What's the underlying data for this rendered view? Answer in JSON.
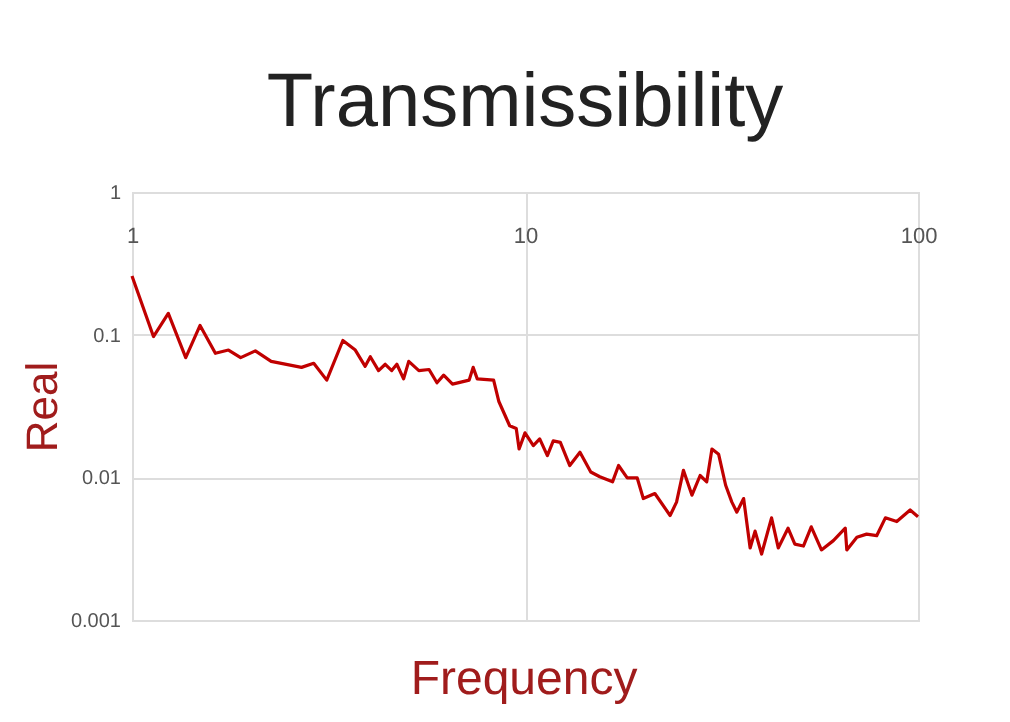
{
  "chart_data": {
    "type": "line",
    "title": "Transmissibility",
    "xlabel": "Frequency",
    "ylabel": "Real",
    "log": "xy",
    "grid": true,
    "xlim": [
      1,
      100
    ],
    "xticks": [
      1,
      10,
      100
    ],
    "ylim": [
      0.001,
      1
    ],
    "yticks": [
      {
        "value": 0.001,
        "label": "0.001"
      },
      {
        "value": 0.01,
        "label": "0.01"
      },
      {
        "value": 0.1,
        "label": "0.1"
      },
      {
        "value": 1,
        "label": "1"
      }
    ],
    "x": [
      1,
      1.134,
      1.237,
      1.37,
      1.49,
      1.63,
      1.76,
      1.89,
      2.06,
      2.26,
      2.7,
      2.9,
      3.13,
      3.44,
      3.7,
      3.92,
      4.04,
      4.24,
      4.41,
      4.58,
      4.72,
      4.91,
      5.06,
      5.37,
      5.7,
      5.97,
      6.21,
      6.54,
      7.21,
      7.38,
      7.56,
      8.32,
      8.58,
      9.14,
      9.5,
      9.66,
      10,
      10.5,
      10.9,
      11.4,
      11.8,
      12.3,
      13,
      13.8,
      14.7,
      15.5,
      16.7,
      17.3,
      18.2,
      19.3,
      20,
      21.4,
      23.4,
      24.3,
      25.3,
      26.6,
      27.9,
      29,
      29.9,
      31.1,
      32.4,
      33.6,
      34.6,
      36,
      37.4,
      38.5,
      40,
      42.4,
      44.1,
      46.7,
      48.6,
      51.1,
      53.5,
      56.8,
      60.9,
      65.3,
      65.9,
      69.9,
      74,
      78.5,
      82.6,
      88.3,
      95.5,
      100
    ],
    "series": [
      {
        "color": "#c00000",
        "values": [
          0.258,
          0.097,
          0.141,
          0.069,
          0.116,
          0.074,
          0.078,
          0.069,
          0.077,
          0.065,
          0.059,
          0.063,
          0.048,
          0.091,
          0.078,
          0.06,
          0.07,
          0.056,
          0.062,
          0.056,
          0.062,
          0.049,
          0.065,
          0.056,
          0.057,
          0.046,
          0.052,
          0.045,
          0.048,
          0.059,
          0.049,
          0.048,
          0.034,
          0.023,
          0.022,
          0.0158,
          0.0205,
          0.0167,
          0.0186,
          0.0142,
          0.018,
          0.0176,
          0.0121,
          0.015,
          0.0109,
          0.0101,
          0.0093,
          0.0121,
          0.0099,
          0.0099,
          0.0071,
          0.0077,
          0.0054,
          0.0067,
          0.0112,
          0.0075,
          0.0103,
          0.0093,
          0.0158,
          0.0145,
          0.0088,
          0.0067,
          0.0057,
          0.0071,
          0.0032,
          0.0042,
          0.0029,
          0.0052,
          0.0032,
          0.0044,
          0.0034,
          0.0033,
          0.0045,
          0.0031,
          0.0036,
          0.0044,
          0.0031,
          0.0038,
          0.004,
          0.0039,
          0.0052,
          0.0049,
          0.0059,
          0.0053
        ]
      }
    ]
  }
}
